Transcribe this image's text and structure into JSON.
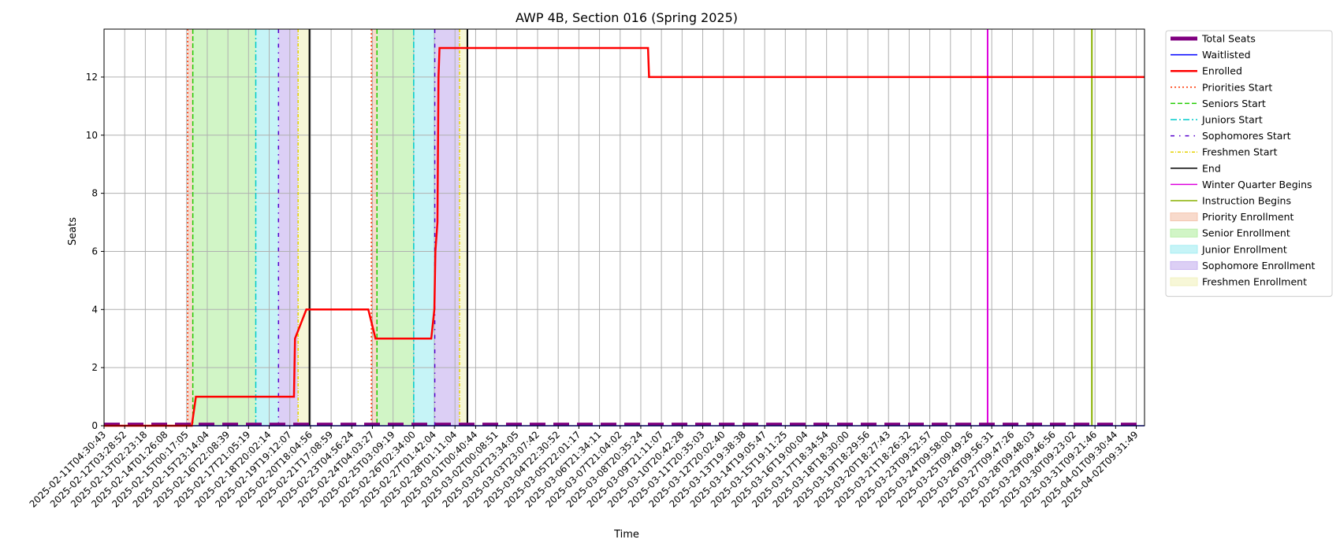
{
  "colors": {
    "total_seats": "#800080",
    "waitlisted": "#0000ff",
    "enrolled": "#ff0000",
    "priorities_start": "#ff3300",
    "seniors_start": "#22cc00",
    "juniors_start": "#00cccc",
    "sophomores_start": "#5500cc",
    "freshmen_start": "#e6d200",
    "end": "#000000",
    "winter_quarter": "#dd00dd",
    "instruction": "#88b000",
    "priority_fill": "#f4c6b0",
    "senior_fill": "#b8efa8",
    "junior_fill": "#a8eef2",
    "sophomore_fill": "#c9b6f0",
    "freshmen_fill": "#f2f2c2"
  },
  "chart_data": {
    "type": "line",
    "title": "AWP 4B, Section 016 (Spring 2025)",
    "xlabel": "Time",
    "ylabel": "Seats",
    "ylim": [
      0,
      13.65
    ],
    "yticks": [
      0,
      2,
      4,
      6,
      8,
      10,
      12
    ],
    "grid": true,
    "legend_position": "outside-right",
    "x_tick_labels": [
      "2025-02-11T04:30:43",
      "2025-02-12T03:28:52",
      "2025-02-13T02:23:18",
      "2025-02-14T01:26:08",
      "2025-02-15T00:17:05",
      "2025-02-15T23:14:04",
      "2025-02-16T22:08:39",
      "2025-02-17T21:05:19",
      "2025-02-18T20:02:14",
      "2025-02-19T19:12:07",
      "2025-02-20T18:04:56",
      "2025-02-21T17:08:59",
      "2025-02-23T04:56:24",
      "2025-02-24T04:03:27",
      "2025-02-25T03:09:19",
      "2025-02-26T02:34:00",
      "2025-02-27T01:42:04",
      "2025-02-28T01:11:04",
      "2025-03-01T00:40:44",
      "2025-03-02T00:08:51",
      "2025-03-02T23:34:05",
      "2025-03-03T23:07:42",
      "2025-03-04T22:30:52",
      "2025-03-05T22:01:17",
      "2025-03-06T21:34:11",
      "2025-03-07T21:04:02",
      "2025-03-08T20:35:24",
      "2025-03-09T21:11:07",
      "2025-03-10T20:42:28",
      "2025-03-11T20:35:03",
      "2025-03-12T20:02:40",
      "2025-03-13T19:38:38",
      "2025-03-14T19:05:47",
      "2025-03-15T19:11:25",
      "2025-03-16T19:00:04",
      "2025-03-17T18:34:54",
      "2025-03-18T18:30:00",
      "2025-03-19T18:29:56",
      "2025-03-20T18:27:43",
      "2025-03-21T18:26:32",
      "2025-03-23T09:52:57",
      "2025-03-24T09:58:00",
      "2025-03-25T09:49:26",
      "2025-03-26T09:56:31",
      "2025-03-27T09:47:26",
      "2025-03-28T09:48:03",
      "2025-03-29T09:46:56",
      "2025-03-30T09:23:02",
      "2025-03-31T09:21:46",
      "2025-04-01T09:30:44",
      "2025-04-02T09:31:49"
    ],
    "x_range": [
      0,
      50.4
    ],
    "series": [
      {
        "name": "Total Seats",
        "style": "dashed-thick",
        "x": [
          0,
          50.4
        ],
        "y": [
          0.05,
          0.05
        ]
      },
      {
        "name": "Waitlisted",
        "style": "solid",
        "x": [
          0,
          50.4
        ],
        "y": [
          0,
          0
        ]
      },
      {
        "name": "Enrolled",
        "style": "step",
        "x": [
          0,
          4.25,
          4.45,
          9.2,
          9.25,
          9.8,
          10.25,
          12.8,
          13.15,
          15.85,
          16.0,
          16.05,
          16.15,
          16.2,
          16.25,
          26.35,
          26.4,
          50.4
        ],
        "y": [
          0,
          0,
          1,
          1,
          3,
          4,
          4,
          4,
          3,
          3,
          4,
          6,
          7,
          12,
          13,
          13,
          12,
          12
        ]
      }
    ],
    "vlines": [
      {
        "name": "Priorities Start",
        "style": "dotted",
        "x": [
          4.05,
          12.95
        ]
      },
      {
        "name": "Seniors Start",
        "style": "dashed",
        "x": [
          4.3,
          13.22
        ]
      },
      {
        "name": "Juniors Start",
        "style": "dashdot",
        "x": [
          7.35,
          15.0
        ]
      },
      {
        "name": "Sophomores Start",
        "style": "dashdot-sparse",
        "x": [
          8.45,
          16.02
        ]
      },
      {
        "name": "Freshmen Start",
        "style": "dashdot-fine",
        "x": [
          9.4,
          17.22
        ]
      },
      {
        "name": "End",
        "style": "solid",
        "x": [
          9.95,
          17.6
        ]
      },
      {
        "name": "Winter Quarter Begins",
        "style": "solid",
        "x": [
          42.8
        ]
      },
      {
        "name": "Instruction Begins",
        "style": "solid",
        "x": [
          47.85
        ]
      }
    ],
    "spans": [
      {
        "name": "Priority Enrollment",
        "ranges": [
          [
            4.05,
            4.3
          ],
          [
            12.95,
            13.22
          ]
        ]
      },
      {
        "name": "Senior Enrollment",
        "ranges": [
          [
            4.3,
            7.35
          ],
          [
            13.22,
            15.0
          ]
        ]
      },
      {
        "name": "Junior Enrollment",
        "ranges": [
          [
            7.35,
            8.45
          ],
          [
            15.0,
            16.02
          ]
        ]
      },
      {
        "name": "Sophomore Enrollment",
        "ranges": [
          [
            8.45,
            9.4
          ],
          [
            16.02,
            17.22
          ]
        ]
      },
      {
        "name": "Freshmen Enrollment",
        "ranges": [
          [
            9.4,
            9.95
          ],
          [
            17.22,
            17.6
          ]
        ]
      }
    ],
    "legend": [
      "Total Seats",
      "Waitlisted",
      "Enrolled",
      "Priorities Start",
      "Seniors Start",
      "Juniors Start",
      "Sophomores Start",
      "Freshmen Start",
      "End",
      "Winter Quarter Begins",
      "Instruction Begins",
      "Priority Enrollment",
      "Senior Enrollment",
      "Junior Enrollment",
      "Sophomore Enrollment",
      "Freshmen Enrollment"
    ]
  }
}
